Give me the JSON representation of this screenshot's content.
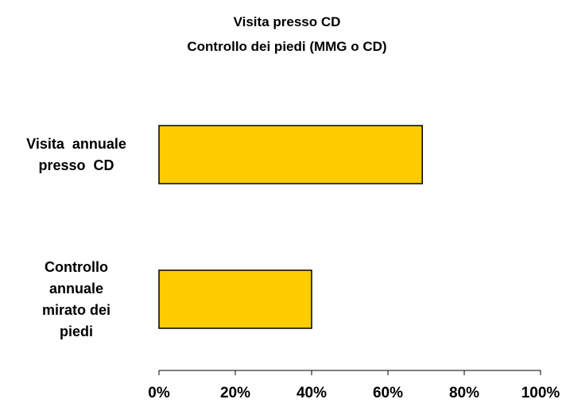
{
  "chart_data": {
    "type": "bar",
    "orientation": "horizontal",
    "title": "Visita presso CD",
    "subtitle": "Controllo dei piedi (MMG o CD)",
    "categories": [
      [
        "Visita  annuale",
        "presso  CD"
      ],
      [
        "Controllo",
        "annuale",
        "mirato dei",
        "piedi"
      ]
    ],
    "values": [
      69,
      40
    ],
    "xlim": [
      0,
      100
    ],
    "ticks": [
      "0%",
      "20%",
      "40%",
      "60%",
      "80%",
      "100%"
    ],
    "grid": false,
    "legend": "none",
    "bar_color": "#FFCC00",
    "bar_edge_color": "#000000"
  }
}
